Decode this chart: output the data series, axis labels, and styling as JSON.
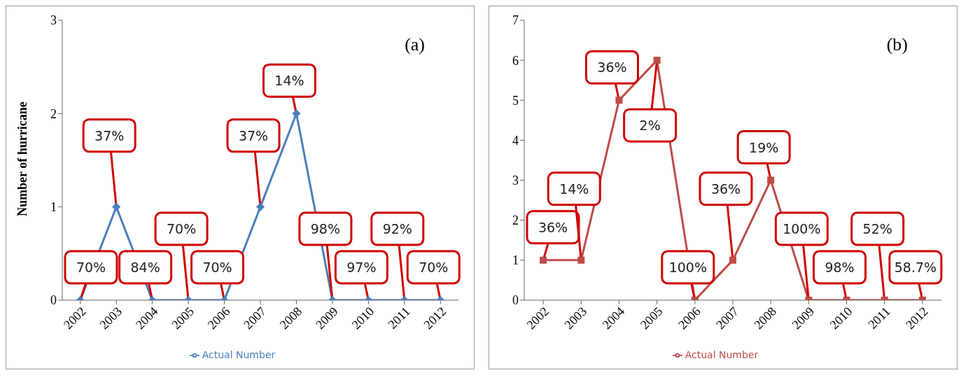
{
  "chart_data": [
    {
      "type": "line",
      "ylabel": "Number of hurricane",
      "categories": [
        "2002",
        "2003",
        "2004",
        "2005",
        "2006",
        "2007",
        "2008",
        "2009",
        "2010",
        "2011",
        "2012"
      ],
      "series": [
        {
          "name": "Actual Number",
          "color": "#4a7ebb",
          "values": [
            0,
            1,
            0,
            0,
            0,
            1,
            2,
            0,
            0,
            0,
            0
          ]
        }
      ],
      "ylim": [
        0,
        3
      ],
      "yticks": [
        0,
        1,
        2,
        3
      ],
      "grid": false,
      "legend": "bottom",
      "marker": "diamond",
      "line_style": "solid",
      "annotations": [
        "(a)",
        {
          "text": "70%",
          "x": "2002",
          "y": 0
        },
        {
          "text": "37%",
          "x": "2003",
          "y": 1
        },
        {
          "text": "84%",
          "x": "2004",
          "y": 0
        },
        {
          "text": "70%",
          "x": "2005",
          "y": 0
        },
        {
          "text": "70%",
          "x": "2006",
          "y": 0
        },
        {
          "text": "37%",
          "x": "2007",
          "y": 1
        },
        {
          "text": "14%",
          "x": "2008",
          "y": 2
        },
        {
          "text": "98%",
          "x": "2009",
          "y": 0
        },
        {
          "text": "97%",
          "x": "2010",
          "y": 0
        },
        {
          "text": "92%",
          "x": "2011",
          "y": 0
        },
        {
          "text": "70%",
          "x": "2012",
          "y": 0
        }
      ]
    },
    {
      "type": "line",
      "categories": [
        "2002",
        "2003",
        "2004",
        "2005",
        "2006",
        "2007",
        "2008",
        "2009",
        "2010",
        "2011",
        "2012"
      ],
      "series": [
        {
          "name": "Actual Number",
          "color": "#be4b48",
          "values": [
            1,
            1,
            5,
            6,
            0,
            1,
            3,
            0,
            0,
            0,
            0
          ]
        }
      ],
      "ylim": [
        0,
        7
      ],
      "yticks": [
        0,
        1,
        2,
        3,
        4,
        5,
        6,
        7
      ],
      "grid": false,
      "legend": "bottom",
      "marker": "square",
      "line_style": "solid",
      "annotations": [
        "(b)",
        {
          "text": "36%",
          "x": "2002",
          "y": 1
        },
        {
          "text": "14%",
          "x": "2003",
          "y": 1
        },
        {
          "text": "36%",
          "x": "2004",
          "y": 5
        },
        {
          "text": "2%",
          "x": "2005",
          "y": 6
        },
        {
          "text": "100%",
          "x": "2006",
          "y": 0
        },
        {
          "text": "36%",
          "x": "2007",
          "y": 1
        },
        {
          "text": "19%",
          "x": "2008",
          "y": 3
        },
        {
          "text": "100%",
          "x": "2009",
          "y": 0
        },
        {
          "text": "98%",
          "x": "2010",
          "y": 0
        },
        {
          "text": "52%",
          "x": "2011",
          "y": 0
        },
        {
          "text": "58.7%",
          "x": "2012",
          "y": 0
        }
      ]
    }
  ]
}
